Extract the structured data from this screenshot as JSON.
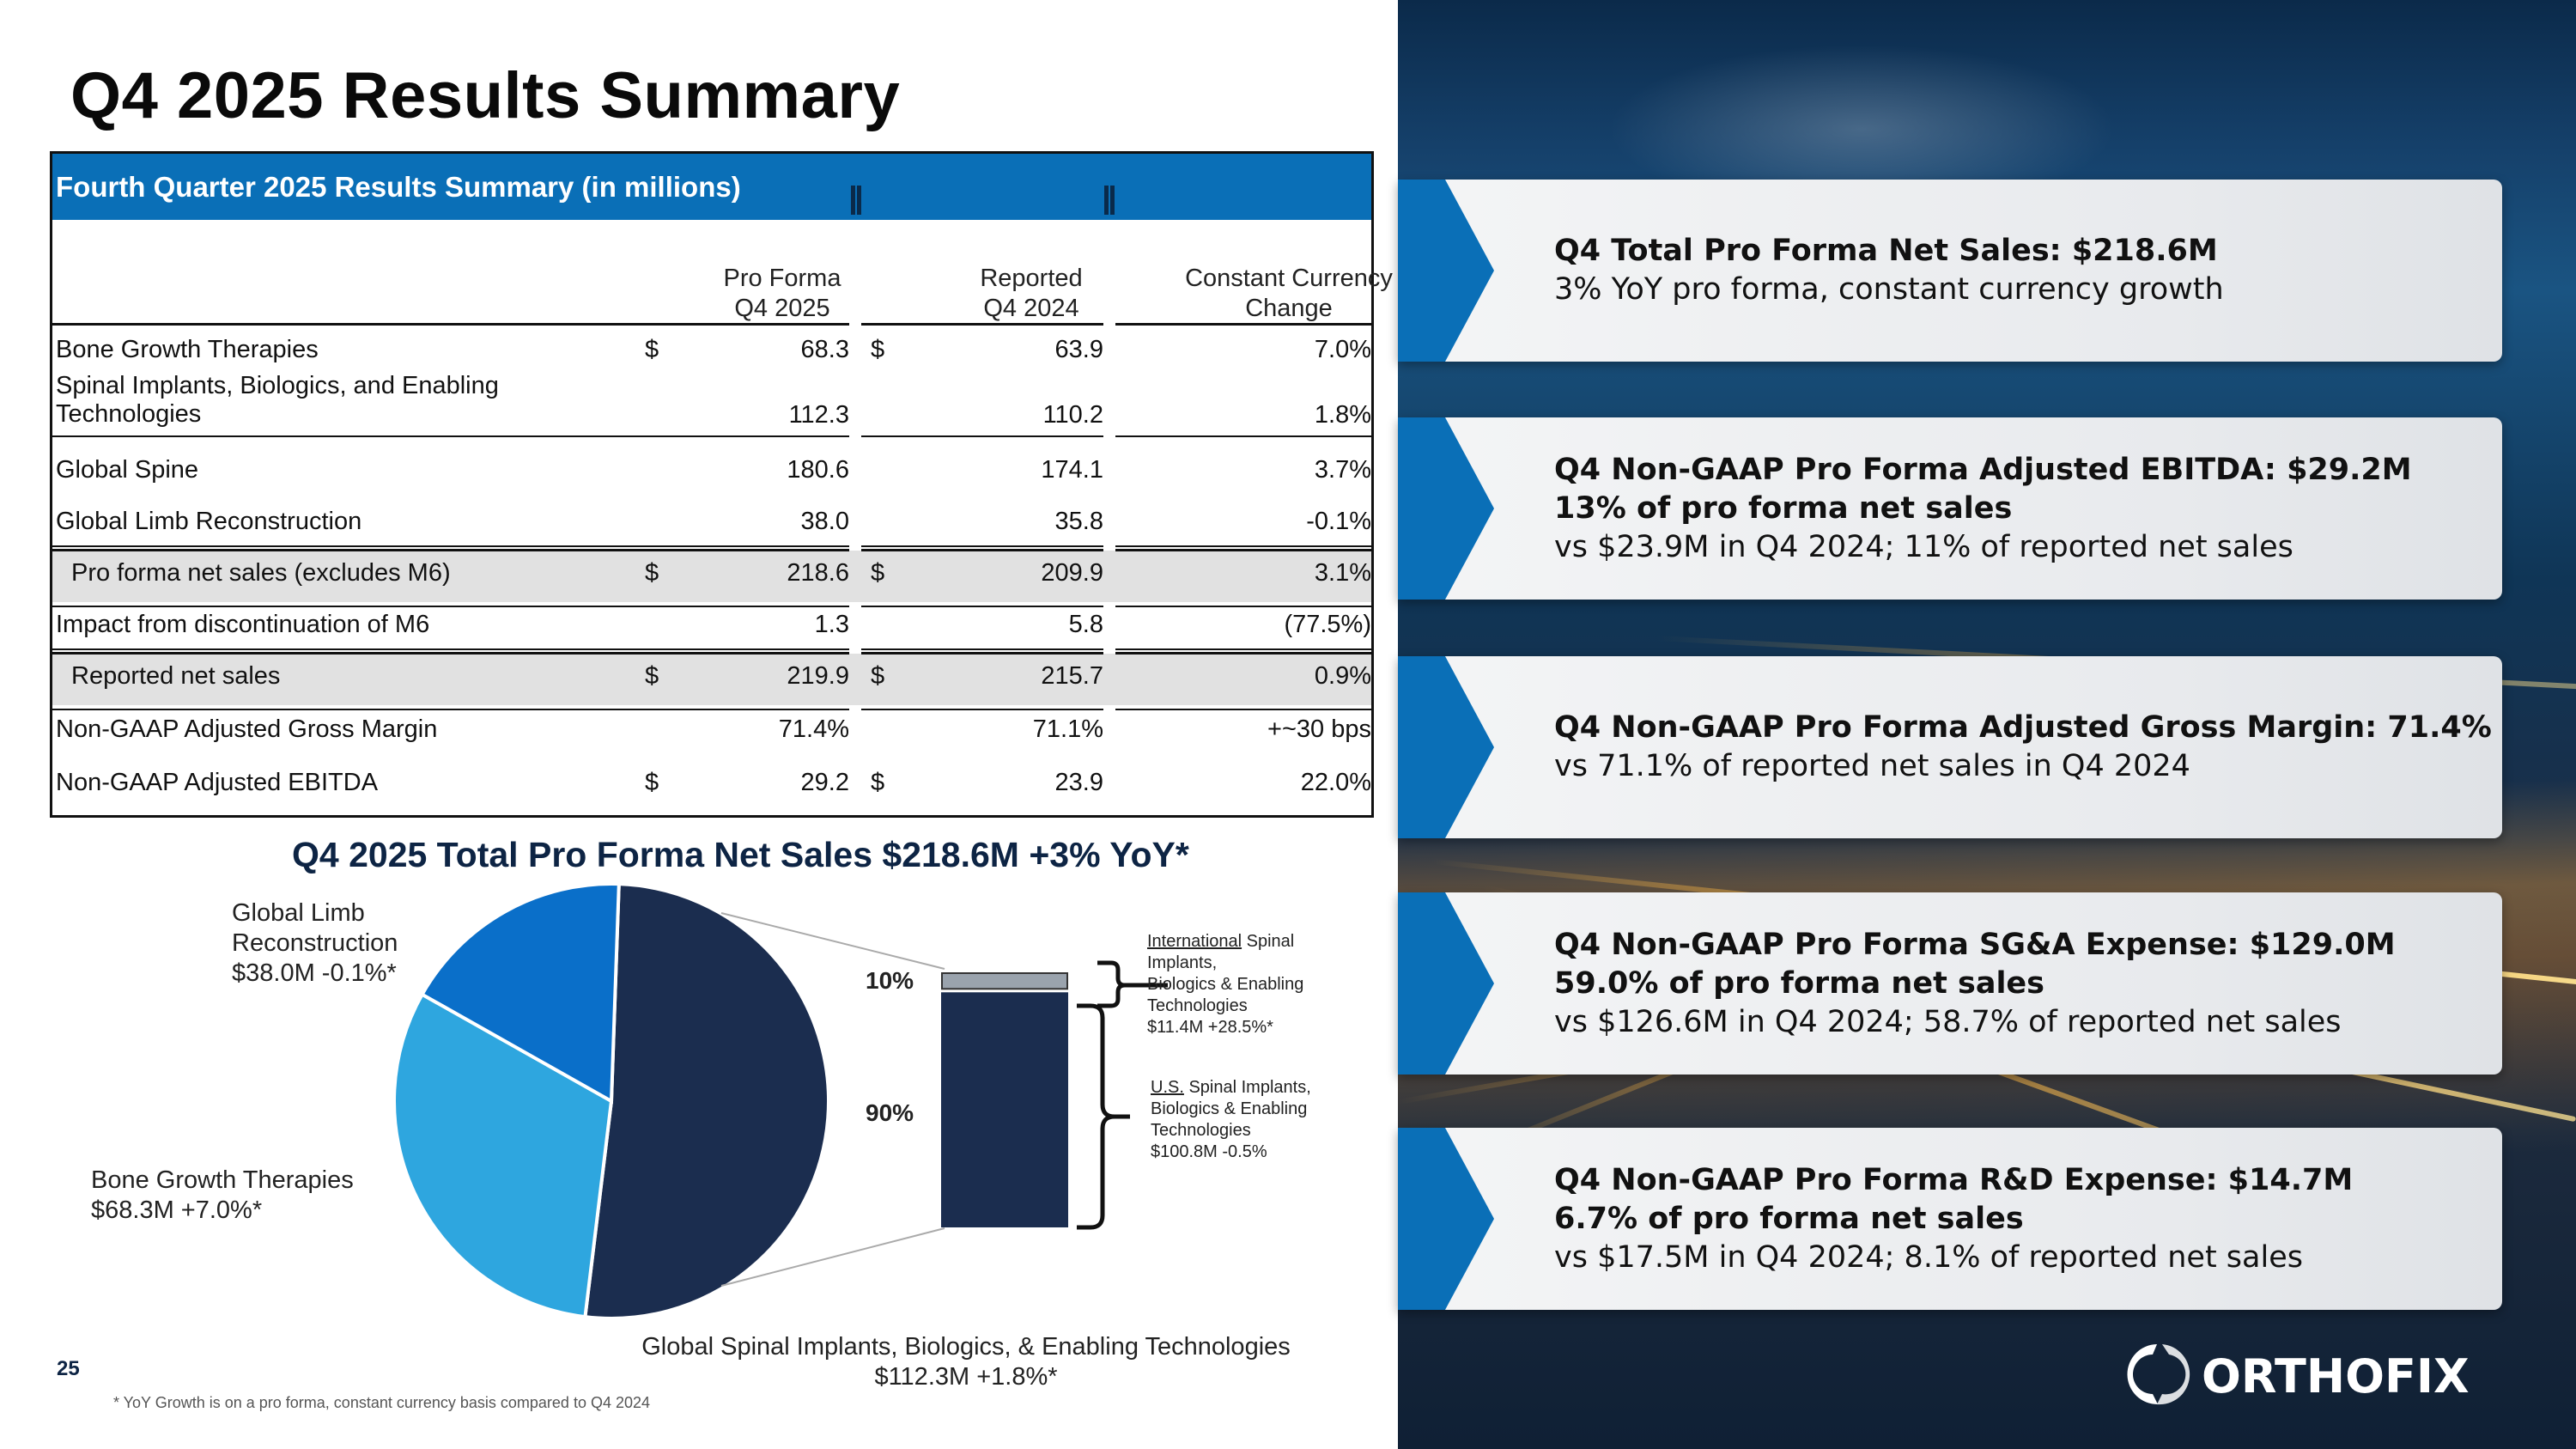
{
  "page": {
    "title": "Q4 2025 Results Summary",
    "page_number": "25",
    "footnote": "* YoY Growth is on a pro forma, constant currency basis compared to Q4 2024"
  },
  "table": {
    "caption": "Fourth Quarter 2025 Results Summary (in millions)",
    "columns": [
      {
        "line1": "Pro Forma",
        "line2": "Q4 2025"
      },
      {
        "line1": "Reported",
        "line2": "Q4 2024"
      },
      {
        "line1": "Constant Currency",
        "line2": "Change"
      }
    ],
    "currency_symbol": "$",
    "rows": [
      {
        "label": "Bone Growth Therapies",
        "v1": "68.3",
        "v2": "63.9",
        "v3": "7.0%"
      },
      {
        "label": "Spinal Implants, Biologics, and Enabling",
        "label2": "Technologies",
        "v1": "112.3",
        "v2": "110.2",
        "v3": "1.8%"
      },
      {
        "label": "Global Spine",
        "v1": "180.6",
        "v2": "174.1",
        "v3": "3.7%"
      },
      {
        "label": "Global Limb Reconstruction",
        "v1": "38.0",
        "v2": "35.8",
        "v3": "-0.1%"
      },
      {
        "label": "Pro forma net sales (excludes M6)",
        "v1": "218.6",
        "v2": "209.9",
        "v3": "3.1%"
      },
      {
        "label": "Impact from discontinuation of M6",
        "v1": "1.3",
        "v2": "5.8",
        "v3": "(77.5%)"
      },
      {
        "label": "Reported net sales",
        "v1": "219.9",
        "v2": "215.7",
        "v3": "0.9%"
      },
      {
        "label": "Non-GAAP Adjusted Gross Margin",
        "v1": "71.4%",
        "v2": "71.1%",
        "v3": "+~30 bps"
      },
      {
        "label": "Non-GAAP Adjusted EBITDA",
        "v1": "29.2",
        "v2": "23.9",
        "v3": "22.0%"
      }
    ]
  },
  "chart_data": {
    "type": "pie",
    "title": "Q4 2025 Total Pro Forma Net Sales $218.6M +3% YoY*",
    "slices": [
      {
        "name": "Global Spinal Implants, Biologics, & Enabling Technologies",
        "value": 112.3,
        "growth": "+1.8%*",
        "label_l1": "Global Spinal Implants, Biologics, & Enabling Technologies",
        "label_l2": "$112.3M +1.8%*",
        "color": "#1b2d4f"
      },
      {
        "name": "Bone Growth Therapies",
        "value": 68.3,
        "growth": "+7.0%*",
        "label_l1": "Bone Growth Therapies",
        "label_l2": "$68.3M  +7.0%*",
        "color": "#2ea6df"
      },
      {
        "name": "Global Limb Reconstruction",
        "value": 38.0,
        "growth": "-0.1%*",
        "label_l1": "Global Limb",
        "label_l1b": "Reconstruction",
        "label_l2": "$38.0M  -0.1%*",
        "color": "#0a6fc9"
      }
    ],
    "breakdown": {
      "series": [
        {
          "name": "International",
          "share_pct": 10,
          "pct_label": "10%",
          "label_u": "International",
          "label_a": " Spinal",
          "label_b": "Implants,",
          "label_c": "Biologics & Enabling",
          "label_d": "Technologies",
          "label_e": "$11.4M  +28.5%*"
        },
        {
          "name": "U.S.",
          "share_pct": 90,
          "pct_label": "90%",
          "label_u": "U.S.",
          "label_a": " Spinal Implants,",
          "label_b": "Biologics & Enabling",
          "label_c": "Technologies",
          "label_d": "$100.8M  -0.5%"
        }
      ]
    }
  },
  "cards": [
    {
      "bold": [
        "Q4 Total Pro Forma Net Sales: $218.6M"
      ],
      "normal": "3% YoY pro forma, constant currency growth"
    },
    {
      "bold": [
        "Q4 Non-GAAP Pro Forma Adjusted EBITDA: $29.2M",
        "13% of pro forma net sales"
      ],
      "normal": "vs $23.9M in Q4 2024; 11% of reported net sales"
    },
    {
      "bold": [
        "Q4 Non-GAAP Pro Forma Adjusted Gross Margin: 71.4%"
      ],
      "normal": "vs 71.1% of reported net sales in Q4 2024"
    },
    {
      "bold": [
        "Q4 Non-GAAP Pro Forma SG&A Expense: $129.0M",
        "59.0% of pro forma net sales"
      ],
      "normal": "vs $126.6M in Q4 2024; 58.7% of reported net sales"
    },
    {
      "bold": [
        "Q4 Non-GAAP Pro Forma R&D Expense: $14.7M",
        "6.7% of pro forma net sales"
      ],
      "normal": "vs $17.5M in Q4 2024; 8.1% of reported net sales"
    }
  ],
  "logo": {
    "text": "ORTHOFIX"
  },
  "colors": {
    "accent": "#0a6fb7",
    "navy": "#1b2d4f",
    "light_blue": "#2ea6df",
    "mid_blue": "#0a6fc9"
  }
}
